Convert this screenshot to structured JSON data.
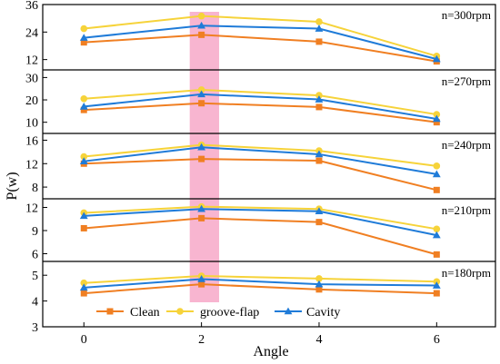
{
  "chart_data": {
    "type": "line",
    "x": [
      0,
      2,
      4,
      6
    ],
    "xticks": [
      "0",
      "2",
      "4",
      "6"
    ],
    "xlim": [
      -0.7,
      7.0
    ],
    "xlabel": "Angle",
    "ylabel": "P(w)",
    "highlight_band": {
      "x_range": [
        1.8,
        2.3
      ],
      "color": "#f7a8c8"
    },
    "legend": {
      "position": "bottom-left of last panel",
      "entries": [
        {
          "label": "Clean",
          "color": "#f07f22",
          "marker": "square"
        },
        {
          "label": "groove-flap",
          "color": "#f6d33a",
          "marker": "circle"
        },
        {
          "label": "Cavity",
          "color": "#1f7bd8",
          "marker": "triangle"
        }
      ]
    },
    "panels": [
      {
        "annotation": "n=300rpm",
        "ylim": [
          7.5,
          36
        ],
        "yticks": [
          "12",
          "24",
          "36"
        ],
        "series": [
          {
            "name": "Clean",
            "values": [
              19.5,
              22.8,
              19.8,
              11.2
            ]
          },
          {
            "name": "groove-flap",
            "values": [
              25.5,
              31.0,
              28.5,
              13.5
            ]
          },
          {
            "name": "Cavity",
            "values": [
              21.5,
              26.8,
              25.5,
              12.2
            ]
          }
        ]
      },
      {
        "annotation": "n=270rpm",
        "ylim": [
          5,
          33
        ],
        "yticks": [
          "10",
          "20",
          "30"
        ],
        "series": [
          {
            "name": "Clean",
            "values": [
              15.5,
              18.5,
              16.8,
              10.0
            ]
          },
          {
            "name": "groove-flap",
            "values": [
              20.5,
              24.5,
              22.0,
              13.5
            ]
          },
          {
            "name": "Cavity",
            "values": [
              17.0,
              22.5,
              20.2,
              11.5
            ]
          }
        ]
      },
      {
        "annotation": "n=240rpm",
        "ylim": [
          6,
          17
        ],
        "yticks": [
          "8",
          "12",
          "16"
        ],
        "series": [
          {
            "name": "Clean",
            "values": [
              12.0,
              12.8,
              12.5,
              7.5
            ]
          },
          {
            "name": "groove-flap",
            "values": [
              13.2,
              15.2,
              14.2,
              11.6
            ]
          },
          {
            "name": "Cavity",
            "values": [
              12.4,
              14.8,
              13.6,
              10.2
            ]
          }
        ]
      },
      {
        "annotation": "n=210rpm",
        "ylim": [
          5,
          13
        ],
        "yticks": [
          "6",
          "9",
          "12"
        ],
        "series": [
          {
            "name": "Clean",
            "values": [
              9.3,
              10.6,
              10.1,
              5.9
            ]
          },
          {
            "name": "groove-flap",
            "values": [
              11.3,
              12.1,
              11.8,
              9.2
            ]
          },
          {
            "name": "Cavity",
            "values": [
              10.9,
              11.8,
              11.5,
              8.4
            ]
          }
        ]
      },
      {
        "annotation": "n=180rpm",
        "ylim": [
          3,
          5.5
        ],
        "yticks": [
          "3",
          "4",
          "5"
        ],
        "series": [
          {
            "name": "Clean",
            "values": [
              4.3,
              4.65,
              4.45,
              4.3
            ]
          },
          {
            "name": "groove-flap",
            "values": [
              4.7,
              4.97,
              4.87,
              4.75
            ]
          },
          {
            "name": "Cavity",
            "values": [
              4.52,
              4.85,
              4.65,
              4.6
            ]
          }
        ]
      }
    ]
  }
}
